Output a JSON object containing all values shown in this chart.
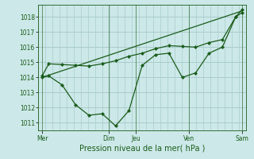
{
  "background_color": "#cce8e8",
  "grid_color": "#aacccc",
  "line_color": "#1a5c1a",
  "marker_color": "#1a5c1a",
  "xlabel": "Pression niveau de la mer( hPa )",
  "xlabel_fontsize": 7,
  "ylim": [
    1010.5,
    1018.8
  ],
  "xlim": [
    -0.3,
    15.3
  ],
  "yticks": [
    1011,
    1012,
    1013,
    1014,
    1015,
    1016,
    1017,
    1018
  ],
  "ytick_fontsize": 5.5,
  "xtick_labels": [
    "Mer",
    "Dim",
    "Jeu",
    "Ven",
    "Sam"
  ],
  "xtick_positions": [
    0,
    5,
    7,
    11,
    15
  ],
  "series1_x": [
    0,
    0.5,
    1.5,
    2.5,
    3.5,
    4.5,
    5.5,
    6.5,
    7.5,
    8.5,
    9.5,
    10.5,
    11.5,
    12.5,
    13.5,
    14.5,
    15
  ],
  "series1_y": [
    1014.0,
    1014.1,
    1013.5,
    1012.2,
    1011.5,
    1011.6,
    1010.8,
    1011.8,
    1014.8,
    1015.5,
    1015.6,
    1014.0,
    1014.3,
    1015.6,
    1016.0,
    1018.0,
    1018.5
  ],
  "series2_x": [
    0,
    0.5,
    1.5,
    2.5,
    3.5,
    4.5,
    5.5,
    6.5,
    7.5,
    8.5,
    9.5,
    10.5,
    11.5,
    12.5,
    13.5,
    14.5,
    15
  ],
  "series2_y": [
    1014.1,
    1014.9,
    1014.85,
    1014.8,
    1014.75,
    1014.9,
    1015.1,
    1015.4,
    1015.6,
    1015.9,
    1016.1,
    1016.05,
    1016.0,
    1016.3,
    1016.5,
    1018.0,
    1018.3
  ],
  "series3_x": [
    0,
    15
  ],
  "series3_y": [
    1014.0,
    1018.4
  ],
  "linewidth": 0.9,
  "markersize": 2.2
}
